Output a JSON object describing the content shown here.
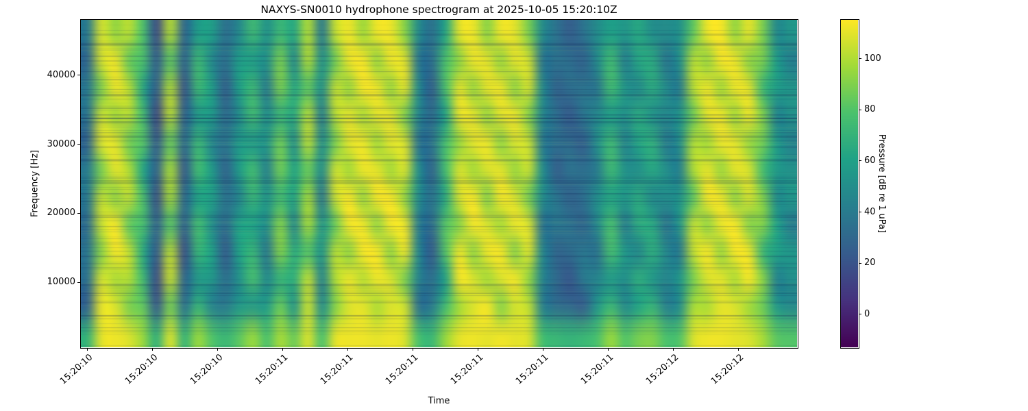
{
  "figure": {
    "title": "NAXYS-SN0010 hydrophone spectrogram at 2025-10-05 15:20:10Z",
    "xlabel": "Time",
    "ylabel": "Frequency [Hz]",
    "colorbar_label": "Pressure [dB re 1 uPa]"
  },
  "axes": {
    "x_tick_labels": [
      "15:20:10",
      "15:20:10",
      "15:20:10",
      "15:20:11",
      "15:20:11",
      "15:20:11",
      "15:20:11",
      "15:20:11",
      "15:20:11",
      "15:20:12",
      "15:20:12"
    ],
    "y_tick_labels": [
      "40000",
      "30000",
      "20000",
      "10000"
    ],
    "y_tick_values": [
      40000,
      30000,
      20000,
      10000
    ],
    "colorbar_tick_labels": [
      "100",
      "80",
      "60",
      "40",
      "20",
      "0"
    ],
    "colorbar_tick_values": [
      100,
      80,
      60,
      40,
      20,
      0
    ]
  },
  "chart_data": {
    "type": "heatmap",
    "title": "NAXYS-SN0010 hydrophone spectrogram at 2025-10-05 15:20:10Z",
    "xlabel": "Time",
    "ylabel": "Frequency [Hz]",
    "colorbar_label": "Pressure [dB re 1 uPa]",
    "colormap": "viridis",
    "colormap_stops": [
      "#440154",
      "#46327e",
      "#365c8d",
      "#277f8e",
      "#1fa187",
      "#4ac16d",
      "#a0da39",
      "#fde725"
    ],
    "db_min": -13,
    "db_max": 115,
    "colorbar_tick_values": [
      0,
      20,
      40,
      60,
      80,
      100
    ],
    "freq_range_hz": [
      550,
      47950
    ],
    "y_tick_values_hz": [
      10000,
      20000,
      30000,
      40000
    ],
    "time_start_label": "15:20:10",
    "time_end_label": "15:20:12",
    "x_tick_labels": [
      "15:20:10",
      "15:20:10",
      "15:20:10",
      "15:20:11",
      "15:20:11",
      "15:20:11",
      "15:20:11",
      "15:20:11",
      "15:20:11",
      "15:20:12",
      "15:20:12"
    ],
    "grid_note": "values_db: 12 rows (top=48kHz to bottom=0Hz) x 52 time columns, pressure in dB re 1 uPa",
    "values_db": [
      [
        39,
        107,
        94,
        102,
        79,
        17,
        100,
        29,
        58,
        59,
        34,
        47,
        74,
        52,
        73,
        64,
        100,
        40,
        104,
        112,
        96,
        112,
        112,
        92,
        49,
        34,
        63,
        110,
        112,
        92,
        112,
        110,
        89,
        49,
        36,
        25,
        36,
        49,
        60,
        54,
        64,
        50,
        49,
        52,
        84,
        112,
        114,
        94,
        110,
        89,
        47,
        54
      ],
      [
        30,
        107,
        112,
        84,
        79,
        26,
        82,
        29,
        74,
        47,
        34,
        59,
        58,
        52,
        89,
        48,
        100,
        52,
        86,
        112,
        114,
        94,
        112,
        110,
        37,
        34,
        79,
        92,
        112,
        110,
        94,
        110,
        107,
        37,
        36,
        34,
        27,
        49,
        76,
        42,
        64,
        66,
        37,
        52,
        102,
        94,
        114,
        112,
        92,
        89,
        59,
        42
      ],
      [
        39,
        89,
        112,
        102,
        63,
        26,
        100,
        20,
        74,
        59,
        25,
        59,
        74,
        40,
        89,
        64,
        82,
        52,
        104,
        94,
        114,
        112,
        94,
        110,
        49,
        25,
        79,
        110,
        94,
        110,
        112,
        92,
        107,
        49,
        27,
        34,
        36,
        37,
        76,
        54,
        48,
        66,
        49,
        40,
        102,
        112,
        96,
        112,
        110,
        73,
        59,
        54
      ],
      [
        37,
        105,
        96,
        102,
        77,
        15,
        102,
        27,
        56,
        57,
        32,
        49,
        76,
        50,
        71,
        66,
        102,
        42,
        102,
        110,
        98,
        110,
        110,
        90,
        47,
        32,
        61,
        112,
        110,
        94,
        110,
        112,
        91,
        47,
        34,
        23,
        38,
        47,
        58,
        52,
        66,
        52,
        47,
        54,
        86,
        110,
        112,
        96,
        112,
        91,
        45,
        52
      ],
      [
        28,
        109,
        110,
        86,
        81,
        24,
        84,
        31,
        72,
        45,
        36,
        57,
        56,
        54,
        87,
        50,
        102,
        50,
        88,
        110,
        112,
        96,
        110,
        108,
        35,
        36,
        77,
        94,
        110,
        112,
        92,
        108,
        105,
        39,
        34,
        32,
        25,
        51,
        74,
        44,
        62,
        68,
        39,
        50,
        100,
        96,
        112,
        110,
        94,
        87,
        57,
        44
      ],
      [
        41,
        87,
        110,
        100,
        61,
        28,
        98,
        22,
        76,
        57,
        27,
        57,
        76,
        42,
        87,
        62,
        84,
        50,
        106,
        96,
        112,
        110,
        96,
        108,
        51,
        27,
        77,
        108,
        96,
        108,
        110,
        94,
        105,
        51,
        25,
        36,
        34,
        39,
        74,
        52,
        50,
        64,
        51,
        42,
        100,
        110,
        94,
        110,
        108,
        75,
        57,
        52
      ],
      [
        39,
        103,
        92,
        104,
        79,
        19,
        98,
        31,
        60,
        61,
        36,
        45,
        72,
        54,
        75,
        62,
        98,
        38,
        106,
        114,
        94,
        114,
        114,
        94,
        51,
        36,
        65,
        108,
        114,
        90,
        114,
        108,
        87,
        51,
        38,
        27,
        34,
        51,
        62,
        56,
        66,
        48,
        51,
        54,
        82,
        114,
        112,
        92,
        108,
        91,
        49,
        56
      ],
      [
        32,
        105,
        114,
        82,
        77,
        28,
        80,
        27,
        76,
        49,
        32,
        61,
        60,
        50,
        91,
        46,
        98,
        54,
        84,
        114,
        112,
        92,
        114,
        112,
        39,
        32,
        81,
        90,
        114,
        108,
        96,
        112,
        109,
        35,
        38,
        36,
        29,
        47,
        78,
        40,
        66,
        64,
        35,
        54,
        104,
        92,
        112,
        114,
        90,
        91,
        61,
        40
      ],
      [
        37,
        91,
        114,
        104,
        65,
        24,
        102,
        18,
        72,
        61,
        23,
        61,
        72,
        38,
        91,
        66,
        80,
        54,
        102,
        92,
        114,
        114,
        92,
        112,
        47,
        23,
        81,
        112,
        92,
        112,
        114,
        90,
        109,
        47,
        29,
        32,
        38,
        35,
        78,
        56,
        46,
        68,
        47,
        38,
        104,
        114,
        94,
        114,
        112,
        71,
        61,
        56
      ],
      [
        35,
        107,
        98,
        100,
        75,
        17,
        104,
        29,
        54,
        55,
        34,
        51,
        78,
        48,
        69,
        68,
        104,
        44,
        100,
        112,
        100,
        112,
        108,
        88,
        45,
        34,
        59,
        114,
        108,
        96,
        108,
        114,
        93,
        45,
        32,
        21,
        40,
        45,
        56,
        50,
        68,
        54,
        45,
        56,
        88,
        108,
        110,
        98,
        114,
        93,
        43,
        50
      ],
      [
        26,
        111,
        108,
        88,
        83,
        22,
        86,
        33,
        70,
        43,
        38,
        55,
        54,
        56,
        85,
        52,
        104,
        48,
        90,
        108,
        110,
        98,
        108,
        106,
        33,
        38,
        75,
        96,
        108,
        114,
        90,
        106,
        103,
        41,
        32,
        30,
        23,
        53,
        72,
        46,
        60,
        70,
        41,
        48,
        98,
        98,
        110,
        108,
        96,
        85,
        55,
        46
      ],
      [
        70,
        110,
        112,
        108,
        95,
        68,
        108,
        70,
        95,
        80,
        72,
        82,
        95,
        78,
        98,
        85,
        108,
        78,
        110,
        112,
        112,
        110,
        112,
        108,
        78,
        72,
        95,
        110,
        112,
        110,
        112,
        110,
        108,
        76,
        72,
        70,
        72,
        78,
        95,
        80,
        88,
        90,
        78,
        80,
        108,
        112,
        112,
        110,
        108,
        98,
        82,
        80
      ]
    ]
  }
}
